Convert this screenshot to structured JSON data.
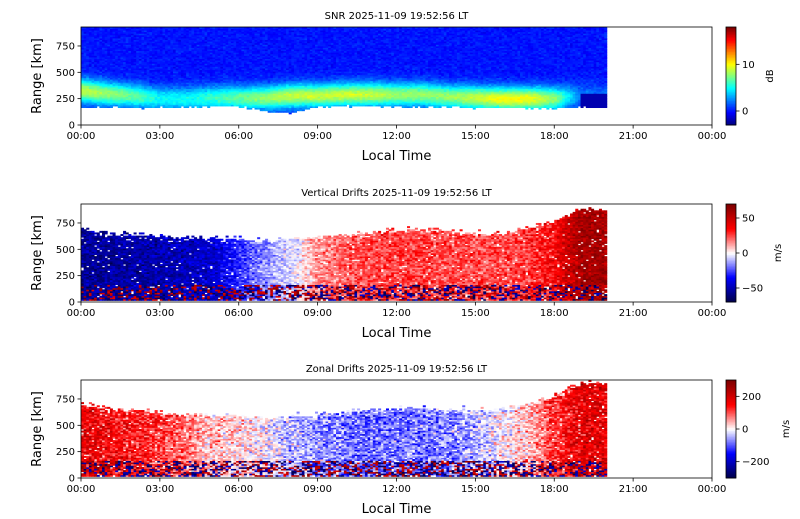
{
  "chart_data": [
    {
      "type": "heatmap",
      "title": "SNR 2025-11-09 19:52:56 LT",
      "xlabel": "Local Time",
      "ylabel": "Range [km]",
      "xlim": [
        0,
        24
      ],
      "ylim": [
        0,
        930
      ],
      "x_ticks": [
        0,
        3,
        6,
        9,
        12,
        15,
        18,
        21,
        24
      ],
      "x_tick_labels": [
        "00:00",
        "03:00",
        "06:00",
        "09:00",
        "12:00",
        "15:00",
        "18:00",
        "21:00",
        "00:00"
      ],
      "y_ticks": [
        0,
        250,
        500,
        750
      ],
      "y_tick_labels": [
        "0",
        "250",
        "500",
        "750"
      ],
      "data_end_hour": 20.0,
      "colormap": "jet",
      "colorbar": {
        "label": "dB",
        "vmin": -3,
        "vmax": 18,
        "ticks": [
          0,
          10
        ],
        "tick_labels": [
          "0",
          "10"
        ]
      },
      "profile": {
        "description": "SNR by hour: lower boundary of echoes (km), enhanced-layer center (km) and peak SNR (dB)",
        "hours": [
          0,
          1,
          2,
          3,
          4,
          5,
          6,
          7,
          8,
          9,
          10,
          11,
          12,
          13,
          14,
          15,
          16,
          17,
          18,
          19,
          20
        ],
        "bottom_km": [
          170,
          170,
          165,
          165,
          165,
          175,
          180,
          130,
          110,
          170,
          180,
          180,
          175,
          170,
          170,
          165,
          165,
          160,
          160,
          170,
          170
        ],
        "layer_km": [
          330,
          300,
          280,
          250,
          250,
          260,
          260,
          260,
          280,
          280,
          290,
          290,
          290,
          290,
          270,
          260,
          250,
          250,
          250,
          280,
          280
        ],
        "peak_db": [
          9,
          8,
          7,
          5,
          5,
          6,
          7,
          8,
          9,
          9,
          9,
          9,
          8,
          8,
          8,
          9,
          10,
          10,
          8,
          2,
          2
        ]
      }
    },
    {
      "type": "heatmap",
      "title": "Vertical Drifts 2025-11-09 19:52:56 LT",
      "xlabel": "Local Time",
      "ylabel": "Range [km]",
      "xlim": [
        0,
        24
      ],
      "ylim": [
        0,
        930
      ],
      "x_ticks": [
        0,
        3,
        6,
        9,
        12,
        15,
        18,
        21,
        24
      ],
      "x_tick_labels": [
        "00:00",
        "03:00",
        "06:00",
        "09:00",
        "12:00",
        "15:00",
        "18:00",
        "21:00",
        "00:00"
      ],
      "y_ticks": [
        0,
        250,
        500,
        750
      ],
      "y_tick_labels": [
        "0",
        "250",
        "500",
        "750"
      ],
      "data_end_hour": 20.0,
      "colormap": "seismic",
      "colorbar": {
        "label": "m/s",
        "vmin": -70,
        "vmax": 70,
        "ticks": [
          -50,
          0,
          50
        ],
        "tick_labels": [
          "−50",
          "0",
          "50"
        ]
      },
      "profile": {
        "description": "Mean vertical drift by hour (m/s) and upper extent of echoes (km)",
        "hours": [
          0,
          1,
          2,
          3,
          4,
          5,
          6,
          7,
          8,
          9,
          10,
          11,
          12,
          13,
          14,
          15,
          16,
          17,
          18,
          19,
          20
        ],
        "drift_ms": [
          -55,
          -55,
          -52,
          -50,
          -48,
          -45,
          -30,
          -15,
          -5,
          15,
          22,
          25,
          27,
          27,
          25,
          25,
          25,
          27,
          35,
          60,
          60
        ],
        "top_km": [
          700,
          650,
          640,
          620,
          610,
          600,
          600,
          580,
          600,
          610,
          640,
          660,
          680,
          690,
          670,
          650,
          650,
          700,
          780,
          880,
          880
        ]
      }
    },
    {
      "type": "heatmap",
      "title": "Zonal Drifts 2025-11-09 19:52:56 LT",
      "xlabel": "Local Time",
      "ylabel": "Range [km]",
      "xlim": [
        0,
        24
      ],
      "ylim": [
        0,
        930
      ],
      "x_ticks": [
        0,
        3,
        6,
        9,
        12,
        15,
        18,
        21,
        24
      ],
      "x_tick_labels": [
        "00:00",
        "03:00",
        "06:00",
        "09:00",
        "12:00",
        "15:00",
        "18:00",
        "21:00",
        "00:00"
      ],
      "y_ticks": [
        0,
        250,
        500,
        750
      ],
      "y_tick_labels": [
        "0",
        "250",
        "500",
        "750"
      ],
      "data_end_hour": 20.0,
      "colormap": "seismic",
      "colorbar": {
        "label": "m/s",
        "vmin": -300,
        "vmax": 300,
        "ticks": [
          -200,
          0,
          200
        ],
        "tick_labels": [
          "−200",
          "0",
          "200"
        ]
      },
      "profile": {
        "description": "Mean zonal drift by hour (m/s) and upper extent of echoes (km)",
        "hours": [
          0,
          1,
          2,
          3,
          4,
          5,
          6,
          7,
          8,
          9,
          10,
          11,
          12,
          13,
          14,
          15,
          16,
          17,
          18,
          19,
          20
        ],
        "drift_ms": [
          180,
          160,
          140,
          120,
          80,
          40,
          20,
          0,
          -40,
          -60,
          -80,
          -90,
          -80,
          -80,
          -70,
          -50,
          0,
          40,
          120,
          180,
          180
        ],
        "top_km": [
          700,
          650,
          640,
          620,
          600,
          590,
          590,
          570,
          580,
          600,
          620,
          640,
          660,
          660,
          650,
          640,
          650,
          700,
          780,
          900,
          900
        ]
      }
    }
  ]
}
